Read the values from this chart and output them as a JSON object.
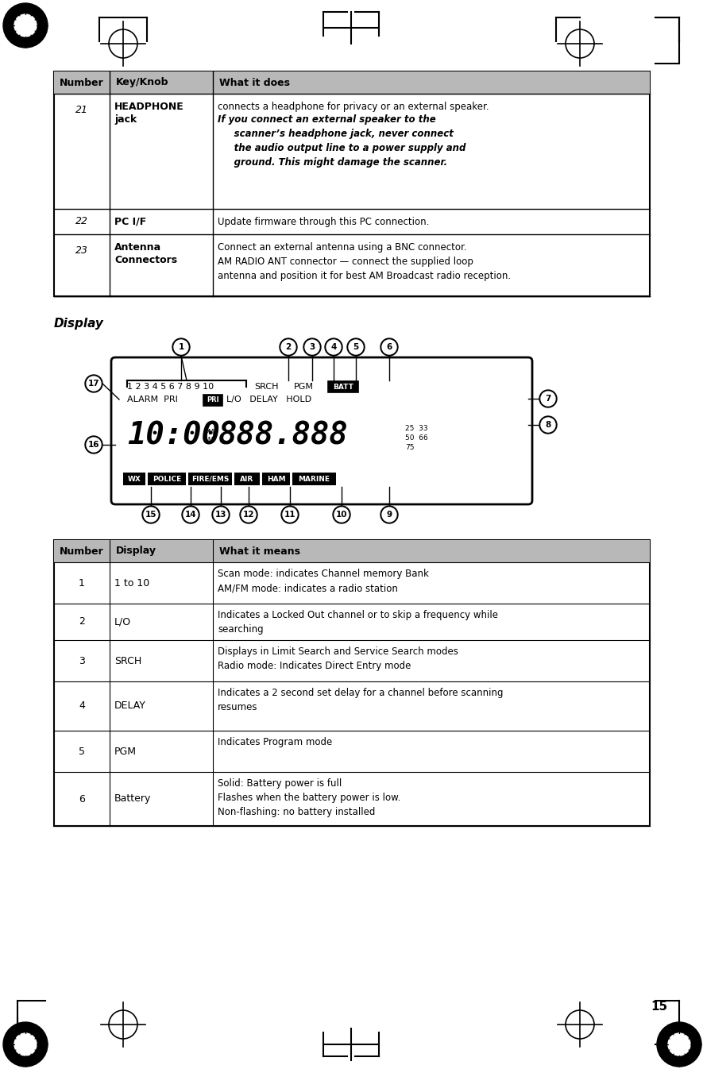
{
  "page_bg": "#ffffff",
  "page_number": "15",
  "table1": {
    "header": [
      "Number",
      "Key/Knob",
      "What it does"
    ],
    "header_bg": "#c0c0c0",
    "rows": [
      {
        "number": "21",
        "key": "HEADPHONE\njack",
        "key_bold": true,
        "desc_normal": "connects a headphone for privacy or an external speaker.",
        "desc_italic": "If you connect an external speaker to the\n     scanner’s headphone jack, never connect\n     the audio output line to a power supply and\n     ground. This might damage the scanner."
      },
      {
        "number": "22",
        "key": "PC I/F",
        "key_bold": true,
        "desc_normal": "Update firmware through this PC connection.",
        "desc_italic": ""
      },
      {
        "number": "23",
        "key": "Antenna\nConnectors",
        "key_bold": true,
        "desc_normal": "Connect an external antenna using a BNC connector.\nAM RADIO ANT connector — connect the supplied loop\nantenna and position it for best AM Broadcast radio reception.",
        "desc_italic": ""
      }
    ]
  },
  "display_label": "Display",
  "table2": {
    "header": [
      "Number",
      "Display",
      "What it means"
    ],
    "header_bg": "#c0c0c0",
    "rows": [
      {
        "number": "1",
        "display": "1 to 10",
        "desc": "Scan mode: indicates Channel memory Bank\nAM/FM mode: indicates a radio station"
      },
      {
        "number": "2",
        "display": "L/O",
        "desc": "Indicates a Locked Out channel or to skip a frequency while\nsearching"
      },
      {
        "number": "3",
        "display": "SRCH",
        "desc": "Displays in Limit Search and Service Search modes\nRadio mode: Indicates Direct Entry mode"
      },
      {
        "number": "4",
        "display": "DELAY",
        "desc": "Indicates a 2 second set delay for a channel before scanning\nresumes"
      },
      {
        "number": "5",
        "display": "PGM",
        "desc": "Indicates Program mode"
      },
      {
        "number": "6",
        "display": "Battery",
        "desc": "Solid: Battery power is full\nFlashes when the battery power is low.\nNon-flashing: no battery installed"
      }
    ]
  }
}
